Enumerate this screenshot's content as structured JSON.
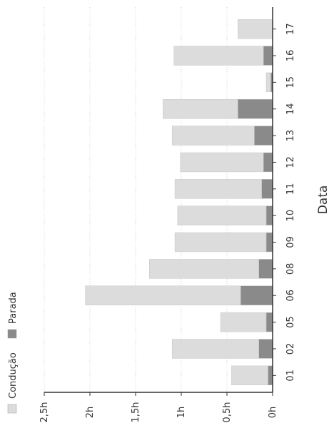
{
  "chart_data": {
    "type": "bar",
    "orientation": "rotated",
    "stacked": true,
    "xlabel": "Data",
    "ylabel": "",
    "categories": [
      "01",
      "02",
      "05",
      "06",
      "08",
      "09",
      "10",
      "11",
      "12",
      "13",
      "14",
      "15",
      "16",
      "17"
    ],
    "series": [
      {
        "name": "Parada",
        "color": "#8a8a8a",
        "values": [
          0.05,
          0.15,
          0.07,
          0.35,
          0.15,
          0.07,
          0.07,
          0.12,
          0.1,
          0.2,
          0.38,
          0.02,
          0.1,
          0.0
        ]
      },
      {
        "name": "Condução",
        "color": "#dcdcdc",
        "values": [
          0.4,
          0.95,
          0.5,
          1.7,
          1.2,
          1.0,
          0.97,
          0.95,
          0.91,
          0.9,
          0.82,
          0.05,
          0.98,
          0.38
        ]
      }
    ],
    "ylim": [
      0,
      2.5
    ],
    "yticks": [
      0,
      0.5,
      1,
      1.5,
      2,
      2.5
    ],
    "ytick_labels": [
      "0h",
      "0,5h",
      "1h",
      "1,5h",
      "2h",
      "2,5h"
    ],
    "grid": true,
    "legend": "bottom-left"
  }
}
